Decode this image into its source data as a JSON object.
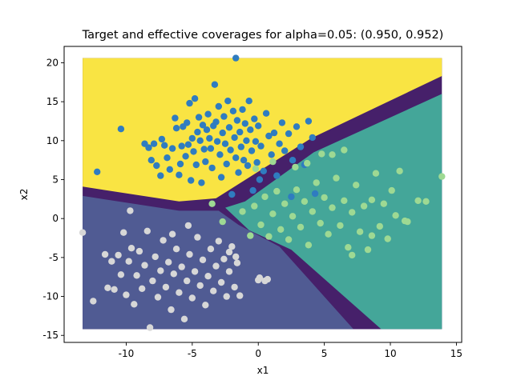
{
  "chart_data": {
    "type": "scatter",
    "title": "Target and effective coverages for alpha=0.05: (0.950, 0.952)",
    "xlabel": "x1",
    "ylabel": "x2",
    "xlim": [
      -14.7,
      15.4
    ],
    "ylim": [
      -15.9,
      22.1
    ],
    "xticks": [
      -10,
      -5,
      0,
      5,
      10,
      15
    ],
    "yticks": [
      -15,
      -10,
      -5,
      0,
      5,
      10,
      15,
      20
    ],
    "grid": false,
    "legend": "none",
    "background_grid_extent": {
      "x": [
        -13.3,
        13.9
      ],
      "y": [
        -14.2,
        20.6
      ]
    },
    "regions": [
      {
        "class": "top",
        "color": "#f9e443",
        "polygon": [
          [
            -13.3,
            20.6
          ],
          [
            13.9,
            20.6
          ],
          [
            13.9,
            18.3
          ],
          [
            4.0,
            10.3
          ],
          [
            -3.2,
            2.6
          ],
          [
            -6.0,
            2.2
          ],
          [
            -13.3,
            4.1
          ]
        ]
      },
      {
        "class": "left",
        "color": "#505b93",
        "polygon": [
          [
            -13.3,
            2.9
          ],
          [
            -6.0,
            1.0
          ],
          [
            -3.0,
            1.0
          ],
          [
            -1.5,
            -0.8
          ],
          [
            1.6,
            -3.6
          ],
          [
            7.2,
            -14.2
          ],
          [
            -13.3,
            -14.2
          ]
        ]
      },
      {
        "class": "right",
        "color": "#44a699",
        "polygon": [
          [
            -2.5,
            1.4
          ],
          [
            -1.0,
            2.2
          ],
          [
            4.2,
            8.5
          ],
          [
            13.9,
            16.0
          ],
          [
            13.9,
            -14.2
          ],
          [
            9.3,
            -14.2
          ],
          [
            2.5,
            -4.0
          ],
          [
            -0.7,
            -1.5
          ]
        ]
      }
    ],
    "region_boundary_color": "#46206a",
    "series": [
      {
        "color": "#2f7cc0",
        "points": [
          [
            -12.2,
            6.0
          ],
          [
            -10.4,
            11.5
          ],
          [
            -8.6,
            9.6
          ],
          [
            -8.3,
            9.1
          ],
          [
            -8.1,
            7.5
          ],
          [
            -7.9,
            9.6
          ],
          [
            -7.7,
            6.8
          ],
          [
            -7.4,
            5.5
          ],
          [
            -7.3,
            10.2
          ],
          [
            -7.1,
            9.4
          ],
          [
            -6.9,
            7.8
          ],
          [
            -6.7,
            6.3
          ],
          [
            -6.5,
            9.0
          ],
          [
            -6.3,
            12.9
          ],
          [
            -6.2,
            11.6
          ],
          [
            -6.0,
            5.6
          ],
          [
            -5.9,
            7.0
          ],
          [
            -5.8,
            9.3
          ],
          [
            -5.7,
            11.8
          ],
          [
            -5.5,
            8.0
          ],
          [
            -5.4,
            12.3
          ],
          [
            -5.3,
            9.5
          ],
          [
            -5.2,
            14.8
          ],
          [
            -5.1,
            4.9
          ],
          [
            -5.0,
            10.3
          ],
          [
            -4.9,
            8.6
          ],
          [
            -4.8,
            15.4
          ],
          [
            -4.7,
            6.9
          ],
          [
            -4.6,
            11.1
          ],
          [
            -4.5,
            13.0
          ],
          [
            -4.4,
            10.0
          ],
          [
            -4.3,
            4.6
          ],
          [
            -4.2,
            12.0
          ],
          [
            -4.1,
            8.9
          ],
          [
            -4.0,
            7.3
          ],
          [
            -3.9,
            11.4
          ],
          [
            -3.8,
            13.4
          ],
          [
            -3.7,
            10.3
          ],
          [
            -3.6,
            9.0
          ],
          [
            -3.5,
            6.5
          ],
          [
            -3.4,
            11.9
          ],
          [
            -3.3,
            17.2
          ],
          [
            -3.2,
            12.4
          ],
          [
            -3.1,
            9.9
          ],
          [
            -3.0,
            14.4
          ],
          [
            -2.9,
            8.2
          ],
          [
            -2.8,
            5.3
          ],
          [
            -2.7,
            11.0
          ],
          [
            -2.6,
            13.1
          ],
          [
            -2.5,
            9.6
          ],
          [
            -2.4,
            7.0
          ],
          [
            -2.3,
            15.1
          ],
          [
            -2.2,
            11.7
          ],
          [
            -2.1,
            8.8
          ],
          [
            -2.0,
            3.1
          ],
          [
            -1.9,
            13.8
          ],
          [
            -1.8,
            10.4
          ],
          [
            -1.7,
            7.8
          ],
          [
            -1.6,
            12.6
          ],
          [
            -1.5,
            5.9
          ],
          [
            -1.4,
            11.1
          ],
          [
            -1.3,
            9.2
          ],
          [
            -1.2,
            14.0
          ],
          [
            -1.1,
            7.5
          ],
          [
            -1.0,
            12.2
          ],
          [
            -0.9,
            10.0
          ],
          [
            -0.8,
            6.8
          ],
          [
            -0.7,
            15.1
          ],
          [
            -0.6,
            11.4
          ],
          [
            -0.5,
            8.7
          ],
          [
            -0.4,
            3.6
          ],
          [
            -0.3,
            12.8
          ],
          [
            -0.2,
            9.9
          ],
          [
            -0.1,
            7.2
          ],
          [
            0.0,
            11.9
          ],
          [
            0.2,
            9.3
          ],
          [
            0.4,
            6.1
          ],
          [
            0.6,
            13.5
          ],
          [
            0.8,
            10.6
          ],
          [
            1.0,
            8.2
          ],
          [
            1.2,
            11.0
          ],
          [
            1.4,
            5.5
          ],
          [
            1.6,
            9.6
          ],
          [
            1.8,
            12.3
          ],
          [
            2.0,
            8.7
          ],
          [
            2.3,
            10.9
          ],
          [
            2.6,
            7.5
          ],
          [
            2.9,
            11.8
          ],
          [
            3.2,
            9.2
          ],
          [
            3.5,
            6.9
          ],
          [
            3.8,
            12.5
          ],
          [
            4.1,
            10.4
          ],
          [
            -1.7,
            20.6
          ],
          [
            4.3,
            3.2
          ],
          [
            2.5,
            2.8
          ],
          [
            0.1,
            5.0
          ]
        ]
      },
      {
        "color": "#d7d7d7",
        "points": [
          [
            -13.3,
            -1.8
          ],
          [
            -12.5,
            -10.6
          ],
          [
            -11.6,
            -4.6
          ],
          [
            -11.4,
            -8.9
          ],
          [
            -11.1,
            -5.5
          ],
          [
            -10.9,
            -9.1
          ],
          [
            -10.6,
            -4.7
          ],
          [
            -10.4,
            -7.2
          ],
          [
            -10.2,
            -1.8
          ],
          [
            -10.0,
            -9.8
          ],
          [
            -9.8,
            -5.5
          ],
          [
            -9.6,
            -3.8
          ],
          [
            -9.4,
            -11.0
          ],
          [
            -9.2,
            -7.3
          ],
          [
            -9.0,
            -4.2
          ],
          [
            -8.8,
            -9.0
          ],
          [
            -8.6,
            -6.0
          ],
          [
            -8.4,
            -1.6
          ],
          [
            -8.2,
            -14.0
          ],
          [
            -8.0,
            -8.0
          ],
          [
            -7.8,
            -4.9
          ],
          [
            -7.6,
            -10.1
          ],
          [
            -7.4,
            -6.7
          ],
          [
            -7.2,
            -2.8
          ],
          [
            -7.0,
            -8.8
          ],
          [
            -6.8,
            -5.6
          ],
          [
            -6.6,
            -11.7
          ],
          [
            -6.4,
            -7.1
          ],
          [
            -6.2,
            -3.9
          ],
          [
            -6.0,
            -9.5
          ],
          [
            -5.8,
            -6.2
          ],
          [
            -5.6,
            -12.9
          ],
          [
            -5.4,
            -8.0
          ],
          [
            -5.2,
            -4.6
          ],
          [
            -5.0,
            -10.2
          ],
          [
            -4.8,
            -6.8
          ],
          [
            -4.6,
            -2.4
          ],
          [
            -4.4,
            -8.6
          ],
          [
            -4.2,
            -5.3
          ],
          [
            -4.0,
            -11.1
          ],
          [
            -3.8,
            -7.4
          ],
          [
            -3.6,
            -3.9
          ],
          [
            -3.4,
            -9.3
          ],
          [
            -3.2,
            -6.1
          ],
          [
            -3.0,
            -2.9
          ],
          [
            -2.8,
            -8.2
          ],
          [
            -2.6,
            -5.2
          ],
          [
            -2.4,
            -10.0
          ],
          [
            -2.2,
            -6.8
          ],
          [
            -2.0,
            -3.6
          ],
          [
            -1.8,
            -8.8
          ],
          [
            -1.6,
            -5.7
          ],
          [
            -1.4,
            -9.9
          ],
          [
            -1.7,
            -4.9
          ],
          [
            -9.7,
            1.0
          ],
          [
            -2.2,
            -4.3
          ],
          [
            -6.5,
            -2.0
          ],
          [
            -5.3,
            -0.9
          ],
          [
            0.0,
            -7.9
          ],
          [
            0.5,
            -8.0
          ],
          [
            0.1,
            -7.6
          ],
          [
            0.7,
            -7.8
          ]
        ]
      },
      {
        "color": "#9ed993",
        "points": [
          [
            -3.5,
            1.9
          ],
          [
            -2.7,
            -0.4
          ],
          [
            -1.2,
            0.9
          ],
          [
            -0.6,
            -2.2
          ],
          [
            -0.3,
            1.6
          ],
          [
            0.2,
            -0.8
          ],
          [
            0.5,
            2.8
          ],
          [
            0.8,
            -2.3
          ],
          [
            1.1,
            0.6
          ],
          [
            1.4,
            3.5
          ],
          [
            1.7,
            -1.4
          ],
          [
            2.0,
            1.9
          ],
          [
            2.3,
            -2.7
          ],
          [
            2.6,
            0.3
          ],
          [
            2.9,
            3.7
          ],
          [
            3.2,
            -1.1
          ],
          [
            3.5,
            2.2
          ],
          [
            3.8,
            -3.4
          ],
          [
            4.1,
            0.9
          ],
          [
            4.4,
            4.6
          ],
          [
            4.7,
            -0.6
          ],
          [
            5.0,
            2.7
          ],
          [
            5.3,
            -2.0
          ],
          [
            5.6,
            1.4
          ],
          [
            5.9,
            5.2
          ],
          [
            6.2,
            -0.9
          ],
          [
            6.5,
            2.3
          ],
          [
            6.8,
            -3.7
          ],
          [
            7.1,
            0.8
          ],
          [
            7.4,
            4.3
          ],
          [
            7.7,
            -1.7
          ],
          [
            8.0,
            1.6
          ],
          [
            8.3,
            -4.0
          ],
          [
            8.6,
            2.4
          ],
          [
            8.9,
            5.8
          ],
          [
            9.2,
            -1.0
          ],
          [
            9.5,
            1.9
          ],
          [
            9.8,
            -2.6
          ],
          [
            10.1,
            3.6
          ],
          [
            10.4,
            0.4
          ],
          [
            10.7,
            6.1
          ],
          [
            11.1,
            -0.3
          ],
          [
            12.1,
            2.3
          ],
          [
            12.7,
            2.2
          ],
          [
            13.9,
            5.4
          ],
          [
            4.8,
            8.3
          ],
          [
            5.6,
            8.2
          ],
          [
            6.5,
            8.8
          ],
          [
            3.7,
            7.1
          ],
          [
            2.8,
            6.6
          ],
          [
            1.1,
            7.3
          ],
          [
            -0.2,
            6.4
          ],
          [
            7.1,
            -4.7
          ],
          [
            8.6,
            -2.2
          ],
          [
            11.3,
            -0.4
          ]
        ]
      }
    ]
  }
}
